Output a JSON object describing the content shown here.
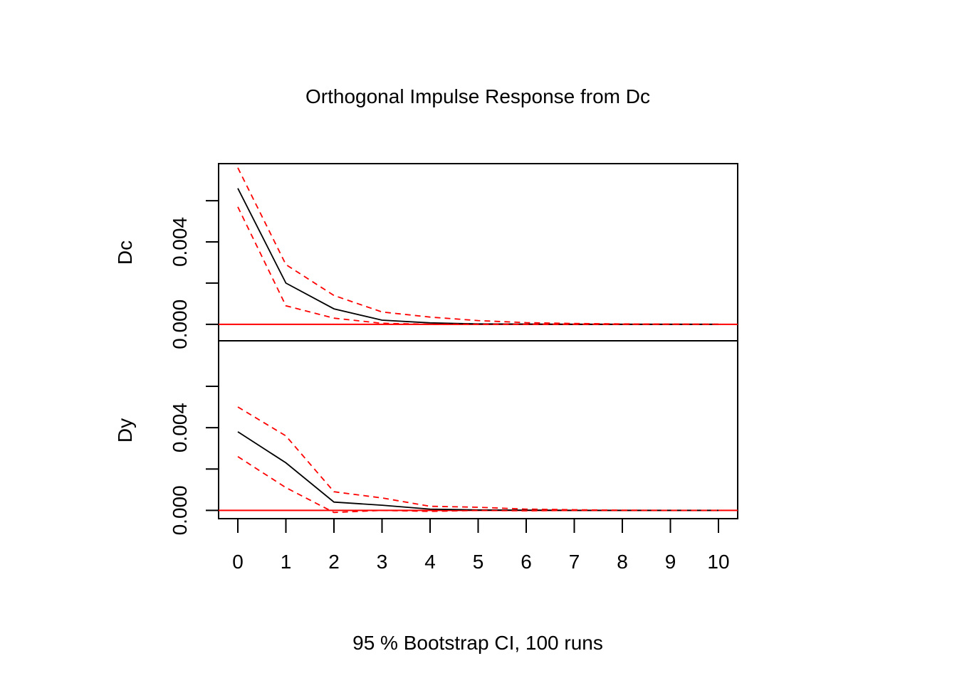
{
  "chart_data": {
    "type": "line",
    "title": "Orthogonal Impulse Response from Dc",
    "xlabel": "95 % Bootstrap CI,  100 runs",
    "x": [
      0,
      1,
      2,
      3,
      4,
      5,
      6,
      7,
      8,
      9,
      10
    ],
    "x_tick_labels": [
      "0",
      "1",
      "2",
      "3",
      "4",
      "5",
      "6",
      "7",
      "8",
      "9",
      "10"
    ],
    "colors": {
      "response": "#000000",
      "ci": "#ff0000",
      "zero_line": "#ff0000"
    },
    "panels": [
      {
        "ylabel": "Dc",
        "y_tick_labels": [
          "0.000",
          "0.004"
        ],
        "y_ticks": [
          0,
          0.002,
          0.004,
          0.006
        ],
        "ylim": [
          -0.0008,
          0.0078
        ],
        "series": [
          {
            "role": "response",
            "values": [
              0.0066,
              0.002,
              0.00075,
              0.0002,
              7e-05,
              2e-05,
              1e-05,
              0.0,
              0.0,
              0.0,
              0.0
            ]
          },
          {
            "role": "ci-upper",
            "values": [
              0.0076,
              0.0029,
              0.0014,
              0.0006,
              0.00035,
              0.00018,
              8e-05,
              4e-05,
              2e-05,
              1e-05,
              0.0
            ]
          },
          {
            "role": "ci-lower",
            "values": [
              0.0057,
              0.0009,
              0.0003,
              5e-05,
              0.0,
              0.0,
              0.0,
              0.0,
              0.0,
              0.0,
              0.0
            ]
          }
        ]
      },
      {
        "ylabel": "Dy",
        "y_tick_labels": [
          "0.000",
          "0.004"
        ],
        "y_ticks": [
          0,
          0.002,
          0.004,
          0.006
        ],
        "ylim": [
          -0.0004,
          0.0082
        ],
        "series": [
          {
            "role": "response",
            "values": [
              0.0038,
              0.0023,
              0.0004,
              0.00025,
              6e-05,
              2e-05,
              1e-05,
              0.0,
              0.0,
              0.0,
              0.0
            ]
          },
          {
            "role": "ci-upper",
            "values": [
              0.005,
              0.0036,
              0.0009,
              0.0006,
              0.0002,
              0.00015,
              6e-05,
              3e-05,
              1e-05,
              0.0,
              0.0
            ]
          },
          {
            "role": "ci-lower",
            "values": [
              0.0026,
              0.0011,
              -0.0001,
              0.0,
              -5e-05,
              0.0,
              -2e-05,
              0.0,
              0.0,
              0.0,
              0.0
            ]
          }
        ]
      }
    ]
  }
}
